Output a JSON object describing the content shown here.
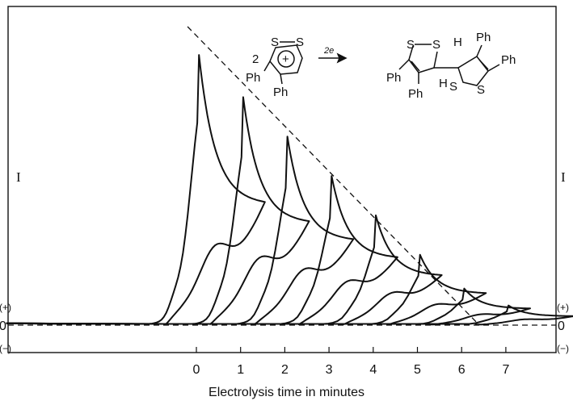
{
  "chart_data": {
    "type": "line",
    "xlabel": "Electrolysis time in minutes",
    "ylabel_left": "I",
    "ylabel_right": "I",
    "sign_labels": {
      "positive": "(+)",
      "zero": "0",
      "negative": "(−)"
    },
    "x_ticks": [
      "0",
      "1",
      "2",
      "3",
      "4",
      "5",
      "6",
      "7"
    ],
    "xlim": [
      -4.3,
      8.1
    ],
    "ylim": [
      -1,
      10
    ],
    "reaction": {
      "coefficient": "2",
      "charge": "+",
      "reagent": "2e",
      "atom_S": "S",
      "atom_H": "H",
      "group_Ph": "Ph"
    },
    "series": [
      {
        "start_time": 0,
        "peak_height": 9.6
      },
      {
        "start_time": 1,
        "peak_height": 8.1
      },
      {
        "start_time": 2,
        "peak_height": 6.7
      },
      {
        "start_time": 3,
        "peak_height": 5.3
      },
      {
        "start_time": 4,
        "peak_height": 3.9
      },
      {
        "start_time": 5,
        "peak_height": 2.5
      },
      {
        "start_time": 6,
        "peak_height": 1.3
      },
      {
        "start_time": 7,
        "peak_height": 0.7
      }
    ],
    "peak_envelope": {
      "style": "dashed",
      "x": [
        -0.2,
        6.4
      ],
      "y": [
        10.0,
        0.0
      ]
    },
    "zero_line": {
      "style": "dashed"
    },
    "grid": false
  }
}
